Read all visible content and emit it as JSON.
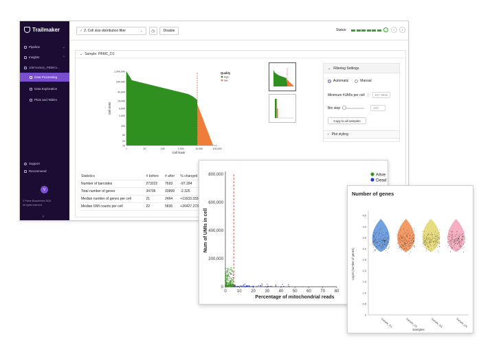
{
  "sidebar": {
    "logo_text": "Trailmaker",
    "items": [
      {
        "label": "Pipeline"
      },
      {
        "label": "Insights"
      },
      {
        "label": "Jdemostory_PBMCs..."
      },
      {
        "label": "Data Processing"
      },
      {
        "label": "Data Exploration"
      },
      {
        "label": "Plots and Tables"
      }
    ],
    "support_label": "Support",
    "recommend_label": "Recommend",
    "avatar_initial": "V",
    "footer_line1": "© Parse Biosciences 2024",
    "footer_line2": "All rights reserved"
  },
  "topbar": {
    "step_select_value": "2. Cell size distribution filter",
    "disable_label": "Disable",
    "status_label": "Status:"
  },
  "content": {
    "sample_header": "Sample: PBMC_D1"
  },
  "knee_chart": {
    "chart_data": {
      "type": "area",
      "xlabel": "Cell Rank",
      "ylabel": "Cell UMIs",
      "x_ticks": [
        "1",
        "10",
        "100",
        "1,000",
        "10,000",
        "100,000"
      ],
      "y_ticks": [
        "1,000,000",
        "200,000",
        "40,000",
        "10,000",
        "3,000",
        "1,000",
        "200",
        "50",
        "20",
        "10"
      ],
      "x_scale": "log",
      "y_scale": "log",
      "threshold_rank": 8000,
      "legend_title": "Quality",
      "series": [
        {
          "name": "high",
          "color": "#2f8f1f"
        },
        {
          "name": "low",
          "color": "#ef7d3a"
        }
      ]
    }
  },
  "filter_panel": {
    "header": "Filtering Settings",
    "automatic_label": "Automatic",
    "manual_label": "Manual",
    "min_umis_label": "Minimum #UMIs per cell",
    "min_umis_value": "837.8695",
    "bin_step_label": "Bin step",
    "bin_step_value": "200",
    "copy_button": "Copy to all samples",
    "plot_styling": "Plot styling"
  },
  "stats_table": {
    "headers": [
      "Statistics",
      "# before",
      "# after",
      "% changed"
    ],
    "rows": [
      [
        "Number of barcodes",
        "273222",
        "7693",
        "-97.184"
      ],
      [
        "Total number of genes",
        "34706",
        "33899",
        "-2.325"
      ],
      [
        "Median number of genes per cell",
        "21",
        "2464",
        "+11633.333"
      ],
      [
        "Median UMI counts per cell",
        "22",
        "5836",
        "+26427.273"
      ]
    ]
  },
  "mito_chart": {
    "chart_data": {
      "type": "scatter",
      "xlabel": "Percentage of mitochondrial reads",
      "ylabel": "Num of UMIs in cell",
      "x_ticks": [
        "0",
        "10",
        "20",
        "30",
        "40",
        "50",
        "60",
        "70",
        "80"
      ],
      "xlim": [
        0,
        80
      ],
      "y_ticks": [
        "0",
        "200,000",
        "400,000",
        "600,000",
        "800,000"
      ],
      "ylim": [
        0,
        800000
      ],
      "threshold_x": 6,
      "series": [
        {
          "name": "Alive",
          "color": "#3b8d24"
        },
        {
          "name": "Dead",
          "color": "#1f3bd6"
        }
      ]
    }
  },
  "violin_chart": {
    "chart_data": {
      "type": "violin",
      "title": "Number of genes",
      "xlabel": "Samples",
      "ylabel": "Log10 (number of genes)",
      "categories": [
        "Sample_D1",
        "Sample_D2",
        "Sample_D3",
        "Sample_D4"
      ],
      "colors": [
        "#5b8fd9",
        "#f08a4b",
        "#e3d66b",
        "#f2a1b5"
      ],
      "medians": [
        3.35,
        3.35,
        3.4,
        3.35
      ],
      "y_ticks": [
        "0",
        "0.5",
        "1.0",
        "1.5",
        "2.0",
        "2.5",
        "3.0",
        "3.5",
        "4.0",
        "4.5"
      ],
      "ylim": [
        0,
        4.6
      ]
    }
  }
}
